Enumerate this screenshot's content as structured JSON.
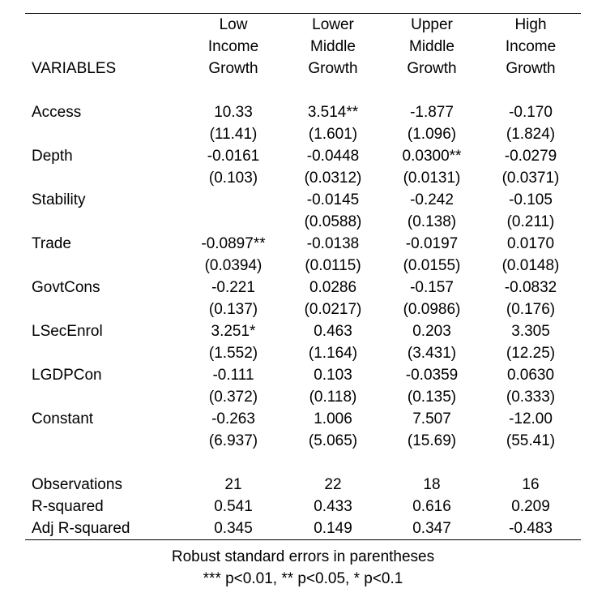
{
  "table": {
    "var_header": "VARIABLES",
    "columns": [
      [
        "Low",
        "Income",
        "Growth"
      ],
      [
        "Lower",
        "Middle",
        "Growth"
      ],
      [
        "Upper",
        "Middle",
        "Growth"
      ],
      [
        "High",
        "Income",
        "Growth"
      ]
    ],
    "rows": [
      {
        "name": "Access",
        "coef": [
          "10.33",
          "3.514**",
          "-1.877",
          "-0.170"
        ],
        "se": [
          "(11.41)",
          "(1.601)",
          "(1.096)",
          "(1.824)"
        ]
      },
      {
        "name": "Depth",
        "coef": [
          "-0.0161",
          "-0.0448",
          "0.0300**",
          "-0.0279"
        ],
        "se": [
          "(0.103)",
          "(0.0312)",
          "(0.0131)",
          "(0.0371)"
        ]
      },
      {
        "name": "Stability",
        "coef": [
          "",
          "-0.0145",
          "-0.242",
          "-0.105"
        ],
        "se": [
          "",
          "(0.0588)",
          "(0.138)",
          "(0.211)"
        ]
      },
      {
        "name": "Trade",
        "coef": [
          "-0.0897**",
          "-0.0138",
          "-0.0197",
          "0.0170"
        ],
        "se": [
          "(0.0394)",
          "(0.0115)",
          "(0.0155)",
          "(0.0148)"
        ]
      },
      {
        "name": "GovtCons",
        "coef": [
          "-0.221",
          "0.0286",
          "-0.157",
          "-0.0832"
        ],
        "se": [
          "(0.137)",
          "(0.0217)",
          "(0.0986)",
          "(0.176)"
        ]
      },
      {
        "name": "LSecEnrol",
        "coef": [
          "3.251*",
          "0.463",
          "0.203",
          "3.305"
        ],
        "se": [
          "(1.552)",
          "(1.164)",
          "(3.431)",
          "(12.25)"
        ]
      },
      {
        "name": "LGDPCon",
        "coef": [
          "-0.111",
          "0.103",
          "-0.0359",
          "0.0630"
        ],
        "se": [
          "(0.372)",
          "(0.118)",
          "(0.135)",
          "(0.333)"
        ]
      },
      {
        "name": "Constant",
        "coef": [
          "-0.263",
          "1.006",
          "7.507",
          "-12.00"
        ],
        "se": [
          "(6.937)",
          "(5.065)",
          "(15.69)",
          "(55.41)"
        ]
      }
    ],
    "stats": [
      {
        "name": "Observations",
        "values": [
          "21",
          "22",
          "18",
          "16"
        ]
      },
      {
        "name": "R-squared",
        "values": [
          "0.541",
          "0.433",
          "0.616",
          "0.209"
        ]
      },
      {
        "name": "Adj R-squared",
        "values": [
          "0.345",
          "0.149",
          "0.347",
          "-0.483"
        ]
      }
    ]
  },
  "notes": {
    "line1": "Robust standard errors in parentheses",
    "line2": "*** p<0.01, ** p<0.05, * p<0.1"
  }
}
